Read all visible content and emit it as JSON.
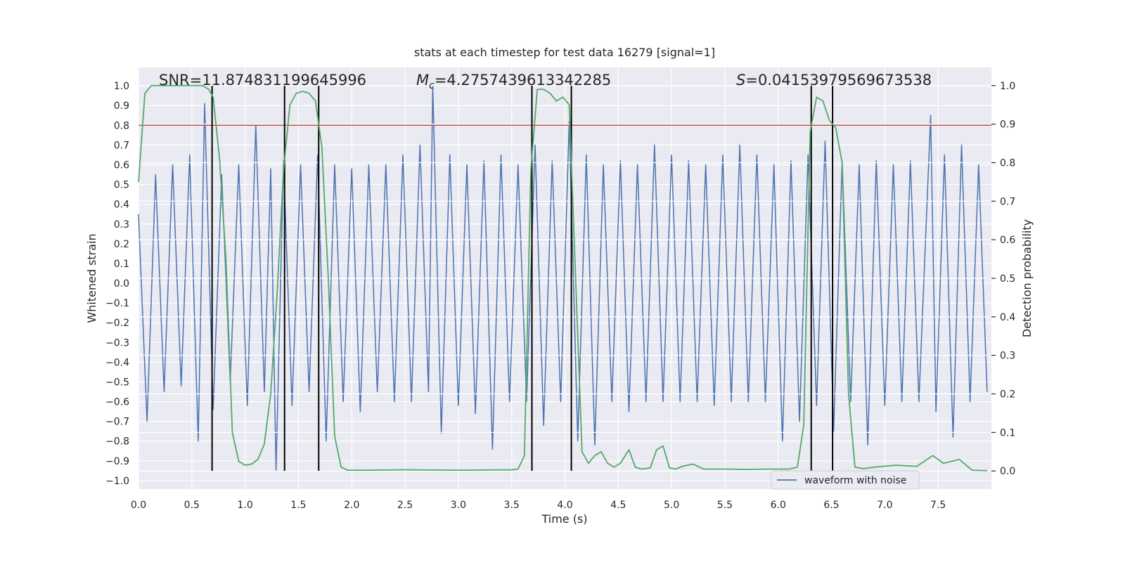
{
  "chart_data": {
    "type": "line",
    "title": "stats at each timestep for test data 16279 [signal=1]",
    "x_label": "Time (s)",
    "y_label": "Whitened strain",
    "y2_label": "Detection probability",
    "annotations": [
      {
        "text": "SNR=11.874831199645996"
      },
      {
        "symbol": "M",
        "subscript": "c",
        "text": "=4.2757439613342285"
      },
      {
        "symbol": "S",
        "text": "=0.04153979569673538"
      }
    ],
    "xlim": [
      0,
      8
    ],
    "ylim": [
      -1.043,
      1.093
    ],
    "y2lim": [
      -0.047,
      1.047
    ],
    "xticks": [
      {
        "value": 0,
        "label": "0.0"
      },
      {
        "value": 0.5,
        "label": "0.5"
      },
      {
        "value": 1,
        "label": "1.0"
      },
      {
        "value": 1.5,
        "label": "1.5"
      },
      {
        "value": 2,
        "label": "2.0"
      },
      {
        "value": 2.5,
        "label": "2.5"
      },
      {
        "value": 3,
        "label": "3.0"
      },
      {
        "value": 3.5,
        "label": "3.5"
      },
      {
        "value": 4,
        "label": "4.0"
      },
      {
        "value": 4.5,
        "label": "4.5"
      },
      {
        "value": 5,
        "label": "5.0"
      },
      {
        "value": 5.5,
        "label": "5.5"
      },
      {
        "value": 6,
        "label": "6.0"
      },
      {
        "value": 6.5,
        "label": "6.5"
      },
      {
        "value": 7,
        "label": "7.0"
      },
      {
        "value": 7.5,
        "label": "7.5"
      }
    ],
    "yticks": [
      {
        "value": -1,
        "label": "−1.0"
      },
      {
        "value": -0.9,
        "label": "−0.9"
      },
      {
        "value": -0.8,
        "label": "−0.8"
      },
      {
        "value": -0.7,
        "label": "−0.7"
      },
      {
        "value": -0.6,
        "label": "−0.6"
      },
      {
        "value": -0.5,
        "label": "−0.5"
      },
      {
        "value": -0.4,
        "label": "−0.4"
      },
      {
        "value": -0.3,
        "label": "−0.3"
      },
      {
        "value": -0.2,
        "label": "−0.2"
      },
      {
        "value": -0.1,
        "label": "−0.1"
      },
      {
        "value": 0,
        "label": "0.0"
      },
      0.1,
      0.2,
      0.3,
      0.4,
      0.5,
      0.6,
      0.7,
      0.8,
      0.9,
      {
        "value": 1,
        "label": "1.0"
      }
    ],
    "y2ticks": [
      {
        "value": 0,
        "label": "0.0"
      },
      0.1,
      0.2,
      0.3,
      0.4,
      0.5,
      0.6,
      0.7,
      0.8,
      0.9,
      {
        "value": 1,
        "label": "1.0"
      }
    ],
    "grid": true,
    "legend": "lower right",
    "series": [
      {
        "name": "waveform with noise",
        "color": "#4c72b0",
        "x": [
          0,
          0.08,
          0.16,
          0.24,
          0.32,
          0.4,
          0.48,
          0.56,
          0.62,
          0.7,
          0.78,
          0.86,
          0.94,
          1.02,
          1.1,
          1.18,
          1.24,
          1.29,
          1.36,
          1.44,
          1.52,
          1.6,
          1.68,
          1.76,
          1.84,
          1.92,
          2,
          2.08,
          2.16,
          2.24,
          2.32,
          2.4,
          2.48,
          2.56,
          2.64,
          2.72,
          2.76,
          2.84,
          2.92,
          3,
          3.08,
          3.16,
          3.24,
          3.32,
          3.4,
          3.48,
          3.56,
          3.64,
          3.72,
          3.8,
          3.88,
          3.96,
          4.04,
          4.12,
          4.2,
          4.28,
          4.36,
          4.44,
          4.52,
          4.6,
          4.68,
          4.76,
          4.84,
          4.92,
          5,
          5.08,
          5.16,
          5.24,
          5.32,
          5.4,
          5.48,
          5.56,
          5.64,
          5.72,
          5.8,
          5.88,
          5.96,
          6.04,
          6.12,
          6.2,
          6.28,
          6.36,
          6.44,
          6.52,
          6.6,
          6.68,
          6.76,
          6.84,
          6.92,
          7,
          7.08,
          7.16,
          7.24,
          7.32,
          7.43,
          7.48,
          7.56,
          7.64,
          7.72,
          7.8,
          7.88,
          7.96
        ],
        "values": [
          0.35,
          -0.7,
          0.55,
          -0.55,
          0.6,
          -0.52,
          0.65,
          -0.8,
          0.91,
          -0.64,
          0.55,
          -0.5,
          0.6,
          -0.62,
          0.8,
          -0.55,
          0.58,
          -0.95,
          0.62,
          -0.62,
          0.6,
          -0.55,
          0.65,
          -0.8,
          0.6,
          -0.6,
          0.58,
          -0.65,
          0.6,
          -0.55,
          0.6,
          -0.6,
          0.65,
          -0.6,
          0.7,
          -0.55,
          1.0,
          -0.76,
          0.65,
          -0.62,
          0.6,
          -0.66,
          0.62,
          -0.84,
          0.65,
          -0.6,
          0.6,
          -0.6,
          0.7,
          -0.72,
          0.62,
          -0.6,
          0.82,
          -0.8,
          0.65,
          -0.82,
          0.6,
          -0.6,
          0.62,
          -0.65,
          0.6,
          -0.6,
          0.7,
          -0.6,
          0.65,
          -0.6,
          0.62,
          -0.6,
          0.6,
          -0.62,
          0.65,
          -0.6,
          0.7,
          -0.6,
          0.65,
          -0.6,
          0.6,
          -0.8,
          0.62,
          -0.7,
          0.65,
          -0.62,
          0.72,
          -0.75,
          0.62,
          -0.6,
          0.6,
          -0.82,
          0.62,
          -0.62,
          0.6,
          -0.6,
          0.62,
          -0.6,
          0.85,
          -0.65,
          0.65,
          -0.78,
          0.7,
          -0.6,
          0.6,
          -0.55
        ]
      },
      {
        "color": "#55a868",
        "axis": "y2",
        "x": [
          0,
          0.06,
          0.12,
          0.2,
          0.3,
          0.4,
          0.5,
          0.6,
          0.66,
          0.7,
          0.76,
          0.82,
          0.88,
          0.94,
          1,
          1.06,
          1.12,
          1.18,
          1.24,
          1.3,
          1.36,
          1.42,
          1.48,
          1.54,
          1.6,
          1.66,
          1.72,
          1.78,
          1.84,
          1.9,
          1.96,
          2.1,
          2.5,
          3,
          3.5,
          3.56,
          3.62,
          3.68,
          3.74,
          3.8,
          3.86,
          3.92,
          3.98,
          4.04,
          4.1,
          4.16,
          4.22,
          4.28,
          4.34,
          4.4,
          4.46,
          4.52,
          4.6,
          4.66,
          4.72,
          4.8,
          4.86,
          4.92,
          4.98,
          5.04,
          5.1,
          5.2,
          5.3,
          5.5,
          5.7,
          5.9,
          6.1,
          6.18,
          6.24,
          6.3,
          6.36,
          6.42,
          6.48,
          6.54,
          6.6,
          6.66,
          6.72,
          6.8,
          6.9,
          7.1,
          7.3,
          7.45,
          7.55,
          7.7,
          7.82,
          7.96
        ],
        "values": [
          0.75,
          0.98,
          1.0,
          1.0,
          1.0,
          1.0,
          1.0,
          1.0,
          0.99,
          0.97,
          0.81,
          0.55,
          0.1,
          0.025,
          0.015,
          0.018,
          0.03,
          0.07,
          0.2,
          0.46,
          0.78,
          0.95,
          0.98,
          0.985,
          0.98,
          0.96,
          0.84,
          0.5,
          0.09,
          0.01,
          0.002,
          0.002,
          0.003,
          0.002,
          0.003,
          0.005,
          0.04,
          0.78,
          0.99,
          0.99,
          0.98,
          0.96,
          0.97,
          0.95,
          0.5,
          0.05,
          0.02,
          0.04,
          0.05,
          0.02,
          0.01,
          0.02,
          0.055,
          0.01,
          0.005,
          0.008,
          0.055,
          0.065,
          0.008,
          0.005,
          0.012,
          0.018,
          0.005,
          0.005,
          0.004,
          0.005,
          0.005,
          0.01,
          0.12,
          0.88,
          0.97,
          0.96,
          0.91,
          0.89,
          0.8,
          0.2,
          0.01,
          0.006,
          0.01,
          0.015,
          0.012,
          0.04,
          0.02,
          0.03,
          0.002,
          0.001
        ]
      }
    ],
    "vlines": [
      0.69,
      1.37,
      1.69,
      3.69,
      4.06,
      6.31,
      6.51
    ],
    "vline_span": [
      -0.95,
      1.0
    ],
    "vline_color": "#000000",
    "hline": 0.8,
    "hline_color": "#c44e52"
  }
}
